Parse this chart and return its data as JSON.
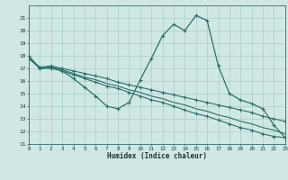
{
  "xlabel": "Humidex (Indice chaleur)",
  "x": [
    0,
    1,
    2,
    3,
    4,
    5,
    6,
    7,
    8,
    9,
    10,
    11,
    12,
    13,
    14,
    15,
    16,
    17,
    18,
    19,
    20,
    21,
    22,
    23
  ],
  "series_main": [
    18.0,
    17.0,
    17.1,
    16.8,
    16.2,
    15.5,
    14.8,
    14.0,
    13.8,
    14.3,
    16.1,
    17.8,
    19.6,
    20.5,
    20.0,
    21.2,
    20.8,
    17.2,
    15.0,
    14.5,
    14.2,
    13.8,
    12.5,
    11.5
  ],
  "series_a": [
    17.8,
    17.0,
    17.0,
    16.8,
    16.5,
    16.2,
    15.9,
    15.6,
    15.4,
    15.1,
    14.8,
    14.5,
    14.3,
    14.0,
    13.7,
    13.4,
    13.2,
    12.9,
    12.6,
    12.3,
    12.1,
    11.8,
    11.6,
    11.5
  ],
  "series_b": [
    17.8,
    17.0,
    17.1,
    16.9,
    16.6,
    16.3,
    16.1,
    15.8,
    15.6,
    15.3,
    15.1,
    14.8,
    14.6,
    14.3,
    14.1,
    13.8,
    13.6,
    13.3,
    13.1,
    12.8,
    12.6,
    12.3,
    12.1,
    11.8
  ],
  "series_c": [
    17.8,
    17.1,
    17.2,
    17.0,
    16.8,
    16.6,
    16.4,
    16.2,
    15.9,
    15.7,
    15.5,
    15.3,
    15.1,
    14.9,
    14.7,
    14.5,
    14.3,
    14.1,
    13.9,
    13.7,
    13.5,
    13.2,
    13.0,
    12.8
  ],
  "color": "#2a7068",
  "bg_color": "#d0e8e4",
  "grid_color": "#aaccc8",
  "ylim": [
    11,
    22
  ],
  "xlim": [
    0,
    23
  ],
  "yticks": [
    11,
    12,
    13,
    14,
    15,
    16,
    17,
    18,
    19,
    20,
    21
  ],
  "xticks": [
    0,
    1,
    2,
    3,
    4,
    5,
    6,
    7,
    8,
    9,
    10,
    11,
    12,
    13,
    14,
    15,
    16,
    17,
    18,
    19,
    20,
    21,
    22,
    23
  ]
}
